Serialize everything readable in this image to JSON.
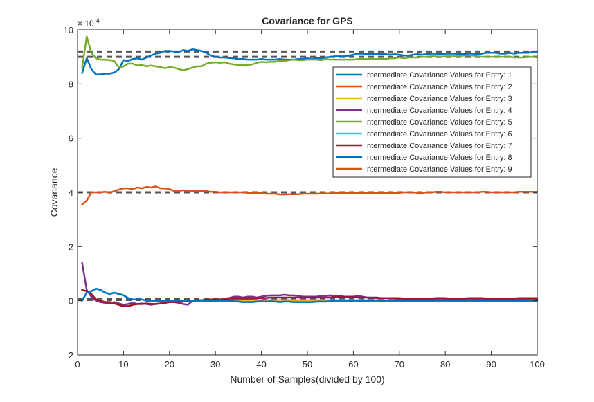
{
  "chart_data": {
    "type": "line",
    "title": "Covariance for GPS",
    "xlabel": "Number of Samples(divided by 100)",
    "ylabel": "Covariance",
    "y_exponent": "× 10^-4",
    "y_exponent_base": "× 10",
    "y_exponent_power": "-4",
    "xlim": [
      0,
      100
    ],
    "ylim": [
      -2,
      10
    ],
    "xticks": [
      "0",
      "10",
      "20",
      "30",
      "40",
      "50",
      "60",
      "70",
      "80",
      "90",
      "100"
    ],
    "yticks": [
      "-2",
      "0",
      "2",
      "4",
      "6",
      "8",
      "10"
    ],
    "grid": false,
    "legend_position": "top-right",
    "x": [
      1,
      2,
      3,
      4,
      5,
      6,
      7,
      8,
      9,
      10,
      11,
      12,
      13,
      14,
      15,
      16,
      17,
      18,
      19,
      20,
      21,
      22,
      23,
      24,
      25,
      26,
      27,
      28,
      29,
      30,
      31,
      32,
      33,
      34,
      35,
      36,
      37,
      38,
      39,
      40,
      41,
      42,
      43,
      44,
      45,
      46,
      47,
      48,
      49,
      50,
      51,
      52,
      53,
      54,
      55,
      56,
      57,
      58,
      59,
      60,
      61,
      62,
      63,
      64,
      65,
      66,
      67,
      68,
      69,
      70,
      71,
      72,
      73,
      74,
      75,
      76,
      77,
      78,
      79,
      80,
      81,
      82,
      83,
      84,
      85,
      86,
      87,
      88,
      89,
      90,
      91,
      92,
      93,
      94,
      95,
      96,
      97,
      98,
      99,
      100
    ],
    "series": [
      {
        "name": "Intermediate Covariance Values for Entry: 1",
        "color": "#0072BD",
        "values": [
          8.4,
          8.95,
          8.55,
          8.35,
          8.35,
          8.38,
          8.38,
          8.42,
          8.55,
          8.88,
          8.85,
          8.92,
          8.95,
          8.9,
          8.98,
          9.05,
          9.12,
          9.15,
          9.22,
          9.22,
          9.2,
          9.18,
          9.25,
          9.22,
          9.28,
          9.25,
          9.22,
          9.15,
          9.05,
          9.0,
          8.98,
          8.98,
          8.96,
          8.95,
          8.92,
          8.92,
          8.9,
          8.9,
          8.9,
          8.92,
          8.9,
          8.9,
          8.9,
          8.92,
          8.9,
          8.9,
          8.9,
          8.92,
          8.92,
          8.95,
          8.92,
          8.95,
          8.95,
          8.98,
          9.0,
          9.02,
          9.02,
          9.02,
          9.05,
          9.08,
          9.12,
          9.12,
          9.1,
          9.12,
          9.1,
          9.1,
          9.1,
          9.08,
          9.1,
          9.08,
          9.05,
          9.05,
          9.08,
          9.1,
          9.08,
          9.1,
          9.12,
          9.12,
          9.1,
          9.12,
          9.12,
          9.12,
          9.1,
          9.1,
          9.12,
          9.12,
          9.1,
          9.12,
          9.15,
          9.15,
          9.15,
          9.12,
          9.12,
          9.15,
          9.12,
          9.15,
          9.15,
          9.15,
          9.18,
          9.2
        ]
      },
      {
        "name": "Intermediate Covariance Values for Entry: 2",
        "color": "#D95319",
        "values": [
          0.4,
          0.35,
          0.25,
          0.05,
          0.0,
          -0.05,
          -0.05,
          -0.1,
          -0.15,
          -0.2,
          -0.2,
          -0.15,
          -0.12,
          -0.12,
          -0.1,
          -0.12,
          -0.12,
          -0.1,
          -0.08,
          -0.05,
          -0.05,
          -0.05,
          -0.03,
          0.0,
          0.0,
          0.0,
          0.0,
          0.0,
          0.0,
          0.0,
          0.0,
          0.0,
          0.02,
          0.02,
          0.02,
          0.02,
          0.02,
          0.02,
          0.02,
          0.02,
          0.02,
          0.02,
          0.02,
          0.02,
          0.02,
          0.02,
          0.02,
          0.02,
          0.02,
          0.02,
          0.02,
          0.02,
          0.02,
          0.02,
          0.02,
          0.02,
          0.02,
          0.02,
          0.02,
          0.02,
          0.02,
          0.02,
          0.02,
          0.02,
          0.02,
          0.02,
          0.02,
          0.02,
          0.02,
          0.02,
          0.02,
          0.02,
          0.02,
          0.02,
          0.02,
          0.02,
          0.02,
          0.02,
          0.02,
          0.02,
          0.02,
          0.02,
          0.02,
          0.02,
          0.02,
          0.02,
          0.02,
          0.02,
          0.02,
          0.02,
          0.02,
          0.02,
          0.02,
          0.02,
          0.02,
          0.02,
          0.02,
          0.02,
          0.02,
          0.02
        ]
      },
      {
        "name": "Intermediate Covariance Values for Entry: 3",
        "color": "#EDB120",
        "values": [
          0.4,
          0.35,
          0.25,
          0.05,
          0.0,
          -0.05,
          -0.05,
          -0.1,
          -0.15,
          -0.2,
          -0.2,
          -0.15,
          -0.12,
          -0.12,
          -0.1,
          -0.12,
          -0.12,
          -0.1,
          -0.08,
          -0.05,
          -0.05,
          -0.05,
          -0.03,
          0.0,
          0.0,
          0.0,
          0.0,
          0.0,
          0.0,
          0.0,
          0.0,
          0.0,
          0.02,
          0.02,
          0.02,
          0.02,
          0.02,
          0.02,
          0.02,
          0.02,
          0.02,
          0.02,
          0.02,
          0.02,
          0.02,
          0.02,
          0.02,
          0.02,
          0.02,
          0.02,
          0.02,
          0.02,
          0.02,
          0.02,
          0.02,
          0.02,
          0.02,
          0.02,
          0.02,
          0.02,
          0.02,
          0.02,
          0.02,
          0.02,
          0.02,
          0.02,
          0.02,
          0.02,
          0.02,
          0.02,
          0.02,
          0.02,
          0.02,
          0.02,
          0.02,
          0.02,
          0.02,
          0.02,
          0.02,
          0.02,
          0.02,
          0.02,
          0.02,
          0.02,
          0.02,
          0.02,
          0.02,
          0.02,
          0.02,
          0.02,
          0.02,
          0.02,
          0.02,
          0.02,
          0.02,
          0.02,
          0.02,
          0.02,
          0.02,
          0.02
        ]
      },
      {
        "name": "Intermediate Covariance Values for Entry: 4",
        "color": "#7E2F8E",
        "values": [
          1.4,
          0.4,
          0.15,
          0.0,
          -0.05,
          -0.08,
          -0.1,
          -0.05,
          -0.1,
          -0.15,
          -0.12,
          -0.08,
          -0.12,
          -0.1,
          -0.12,
          -0.15,
          -0.12,
          -0.1,
          -0.08,
          -0.05,
          -0.05,
          -0.08,
          -0.12,
          -0.15,
          0.0,
          0.02,
          0.0,
          0.02,
          0.05,
          0.05,
          0.05,
          0.08,
          0.1,
          0.15,
          0.15,
          0.12,
          0.15,
          0.15,
          0.12,
          0.15,
          0.18,
          0.2,
          0.2,
          0.2,
          0.22,
          0.2,
          0.2,
          0.18,
          0.15,
          0.15,
          0.15,
          0.15,
          0.18,
          0.18,
          0.2,
          0.18,
          0.18,
          0.15,
          0.15,
          0.15,
          0.18,
          0.15,
          0.12,
          0.1,
          0.1,
          0.08,
          0.1,
          0.1,
          0.08,
          0.05,
          0.05,
          0.05,
          0.05,
          0.05,
          0.05,
          0.05,
          0.05,
          0.05,
          0.05,
          0.05,
          0.05,
          0.05,
          0.05,
          0.05,
          0.05,
          0.05,
          0.05,
          0.05,
          0.05,
          0.05,
          0.05,
          0.05,
          0.05,
          0.05,
          0.05,
          0.05,
          0.05,
          0.05,
          0.05,
          0.05
        ]
      },
      {
        "name": "Intermediate Covariance Values for Entry: 5",
        "color": "#77AC30",
        "values": [
          8.6,
          9.75,
          9.15,
          8.95,
          8.9,
          8.9,
          8.88,
          8.85,
          8.6,
          8.65,
          8.75,
          8.75,
          8.68,
          8.7,
          8.65,
          8.68,
          8.65,
          8.62,
          8.58,
          8.62,
          8.6,
          8.55,
          8.5,
          8.55,
          8.6,
          8.65,
          8.65,
          8.75,
          8.78,
          8.8,
          8.78,
          8.8,
          8.75,
          8.72,
          8.7,
          8.7,
          8.7,
          8.72,
          8.78,
          8.82,
          8.8,
          8.82,
          8.82,
          8.85,
          8.85,
          8.88,
          8.9,
          8.88,
          8.88,
          8.9,
          8.9,
          8.9,
          8.88,
          8.92,
          8.9,
          8.9,
          8.9,
          8.9,
          8.9,
          8.9,
          8.92,
          8.92,
          8.92,
          8.92,
          8.92,
          8.92,
          8.92,
          8.95,
          8.95,
          8.98,
          8.95,
          8.98,
          8.98,
          8.98,
          9.0,
          9.0,
          9.02,
          9.02,
          9.0,
          9.02,
          9.02,
          9.02,
          9.02,
          9.05,
          9.05,
          9.05,
          9.02,
          9.0,
          9.0,
          9.0,
          9.0,
          9.0,
          9.0,
          9.0,
          8.98,
          8.98,
          8.98,
          9.0,
          9.0,
          8.98
        ]
      },
      {
        "name": "Intermediate Covariance Values for Entry: 6",
        "color": "#4DBEEE",
        "values": [
          0.0,
          0.3,
          0.35,
          0.45,
          0.4,
          0.3,
          0.25,
          0.3,
          0.25,
          0.2,
          0.1,
          0.05,
          0.05,
          0.05,
          0.0,
          0.0,
          0.0,
          0.0,
          0.0,
          0.0,
          0.0,
          0.0,
          0.0,
          0.0,
          0.0,
          0.0,
          0.0,
          0.0,
          0.0,
          0.0,
          0.0,
          0.0,
          0.0,
          -0.02,
          -0.03,
          -0.05,
          -0.05,
          -0.05,
          -0.03,
          -0.02,
          -0.03,
          -0.02,
          -0.03,
          -0.05,
          -0.03,
          -0.03,
          -0.05,
          -0.05,
          -0.05,
          -0.05,
          -0.05,
          -0.03,
          -0.03,
          -0.03,
          -0.02,
          0.0,
          0.0,
          0.0,
          0.0,
          0.0,
          0.0,
          0.0,
          0.0,
          0.0,
          0.0,
          0.0,
          0.0,
          0.0,
          0.0,
          0.0,
          0.0,
          0.0,
          0.0,
          0.0,
          0.0,
          0.0,
          0.0,
          0.0,
          0.0,
          0.0,
          0.0,
          0.0,
          0.0,
          0.0,
          0.0,
          0.0,
          0.0,
          0.0,
          0.0,
          0.0,
          0.0,
          0.0,
          0.0,
          0.0,
          0.0,
          0.0,
          0.0,
          0.0,
          0.0,
          0.0
        ]
      },
      {
        "name": "Intermediate Covariance Values for Entry: 7",
        "color": "#A2142F",
        "values": [
          0.4,
          0.35,
          0.25,
          0.05,
          0.0,
          -0.05,
          -0.05,
          -0.1,
          -0.15,
          -0.2,
          -0.2,
          -0.15,
          -0.12,
          -0.12,
          -0.1,
          -0.12,
          -0.12,
          -0.1,
          -0.08,
          -0.05,
          -0.05,
          -0.05,
          -0.03,
          0.0,
          0.0,
          0.02,
          0.02,
          0.05,
          0.05,
          0.05,
          0.05,
          0.05,
          0.08,
          0.08,
          0.08,
          0.08,
          0.08,
          0.08,
          0.1,
          0.1,
          0.1,
          0.12,
          0.12,
          0.12,
          0.12,
          0.12,
          0.12,
          0.12,
          0.12,
          0.12,
          0.12,
          0.12,
          0.12,
          0.12,
          0.12,
          0.15,
          0.15,
          0.15,
          0.15,
          0.15,
          0.12,
          0.12,
          0.12,
          0.12,
          0.12,
          0.1,
          0.1,
          0.1,
          0.1,
          0.1,
          0.08,
          0.08,
          0.08,
          0.08,
          0.08,
          0.08,
          0.08,
          0.1,
          0.1,
          0.1,
          0.08,
          0.08,
          0.08,
          0.08,
          0.1,
          0.1,
          0.1,
          0.1,
          0.08,
          0.08,
          0.08,
          0.08,
          0.08,
          0.08,
          0.08,
          0.1,
          0.1,
          0.1,
          0.1,
          0.1
        ]
      },
      {
        "name": "Intermediate Covariance Values for Entry: 8",
        "color": "#0072BD",
        "values": [
          0.0,
          0.3,
          0.35,
          0.45,
          0.4,
          0.3,
          0.25,
          0.3,
          0.25,
          0.2,
          0.1,
          0.05,
          0.05,
          0.05,
          0.0,
          0.0,
          0.0,
          0.0,
          0.0,
          0.0,
          0.0,
          0.0,
          0.0,
          0.0,
          0.0,
          0.0,
          0.0,
          0.0,
          0.0,
          0.0,
          0.0,
          0.0,
          0.0,
          -0.02,
          -0.03,
          -0.05,
          -0.05,
          -0.05,
          -0.03,
          -0.02,
          -0.03,
          -0.02,
          -0.03,
          -0.05,
          -0.03,
          -0.03,
          -0.05,
          -0.05,
          -0.05,
          -0.05,
          -0.05,
          -0.03,
          -0.03,
          -0.03,
          -0.02,
          0.0,
          0.0,
          0.0,
          0.0,
          0.0,
          0.0,
          0.0,
          0.0,
          0.0,
          0.0,
          0.0,
          0.0,
          0.0,
          0.0,
          0.0,
          0.0,
          0.0,
          0.0,
          0.0,
          0.0,
          0.0,
          0.0,
          0.0,
          0.0,
          0.0,
          0.0,
          0.0,
          0.0,
          0.0,
          0.0,
          0.0,
          0.0,
          0.0,
          0.0,
          0.0,
          0.0,
          0.0,
          0.0,
          0.0,
          0.0,
          0.0,
          0.0,
          0.0,
          0.0,
          0.0
        ]
      },
      {
        "name": "Intermediate Covariance Values for Entry: 9",
        "color": "#D95319",
        "values": [
          3.55,
          3.7,
          4.0,
          4.0,
          4.0,
          4.02,
          3.98,
          4.05,
          4.1,
          4.15,
          4.15,
          4.12,
          4.18,
          4.15,
          4.2,
          4.18,
          4.22,
          4.15,
          4.15,
          4.12,
          4.05,
          4.05,
          4.08,
          4.05,
          4.05,
          4.05,
          4.05,
          4.05,
          4.02,
          4.02,
          4.0,
          4.0,
          4.0,
          4.0,
          4.0,
          4.0,
          3.98,
          3.98,
          3.98,
          3.98,
          3.95,
          3.95,
          3.95,
          3.92,
          3.92,
          3.93,
          3.93,
          3.93,
          3.95,
          3.95,
          3.95,
          3.95,
          3.96,
          3.96,
          3.96,
          3.98,
          3.97,
          3.98,
          3.98,
          3.98,
          3.98,
          3.98,
          3.97,
          3.97,
          3.97,
          3.97,
          3.98,
          3.98,
          3.97,
          3.98,
          4.0,
          4.0,
          4.0,
          3.98,
          3.98,
          4.0,
          4.0,
          4.02,
          4.02,
          4.0,
          4.0,
          4.0,
          4.0,
          4.0,
          4.0,
          4.0,
          4.0,
          4.02,
          4.02,
          4.0,
          4.0,
          4.0,
          4.0,
          4.0,
          4.0,
          4.02,
          4.02,
          4.02,
          4.02,
          4.02
        ]
      }
    ],
    "reference_lines": [
      9.2,
      9.0,
      4.0,
      0.07,
      0.05,
      0.03
    ],
    "reference_line_color": "#555555"
  }
}
